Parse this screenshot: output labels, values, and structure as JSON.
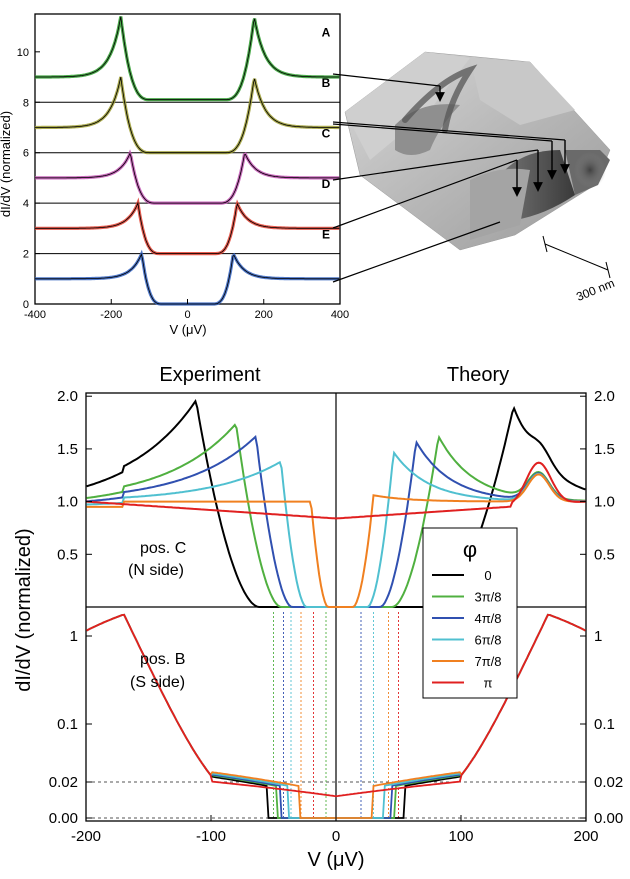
{
  "chart_data": [
    {
      "type": "line",
      "xlabel": "V (μV)",
      "ylabel": "dI/dV (normalized)",
      "xlim": [
        -400,
        400
      ],
      "ylim": [
        0,
        11.5
      ],
      "xticks": [
        "-400",
        "-200",
        "0",
        "200",
        "400"
      ],
      "yticks": [
        "0",
        "2",
        "4",
        "6",
        "8",
        "10"
      ],
      "series": [
        {
          "name": "A",
          "color": "#2a9a2a",
          "baseline": 9,
          "peak": 11.4,
          "gap": 175,
          "floor": 8.1
        },
        {
          "name": "B",
          "color": "#9a9a30",
          "baseline": 7,
          "peak": 9.0,
          "gap": 175,
          "floor": 6.0
        },
        {
          "name": "C",
          "color": "#c050b0",
          "baseline": 5,
          "peak": 6.0,
          "gap": 150,
          "floor": 4.0
        },
        {
          "name": "D",
          "color": "#e04030",
          "baseline": 3,
          "peak": 4.0,
          "gap": 130,
          "floor": 2.0
        },
        {
          "name": "E",
          "color": "#3060c0",
          "baseline": 1,
          "peak": 2.0,
          "gap": 120,
          "floor": 0.0
        }
      ],
      "reference_lines": [
        8,
        6,
        4,
        2
      ],
      "scale_bar": "300 nm"
    },
    {
      "type": "line",
      "panel_titles": {
        "left": "Experiment",
        "right": "Theory"
      },
      "xlabel": "V (μV)",
      "ylabel": "dI/dV (normalized)",
      "xlim": [
        -200,
        200
      ],
      "xticks": [
        "-200",
        "-100",
        "0",
        "100",
        "200"
      ],
      "top_panel": {
        "label_line1": "pos. C",
        "label_line2": "(N side)",
        "ylim": [
          0,
          2.0
        ],
        "yticks": [
          "0.5",
          "1.0",
          "1.5",
          "2.0"
        ],
        "peaks": {
          "experiment": [
            [
              -112,
              1.96
            ],
            [
              -80,
              1.74
            ],
            [
              -64,
              1.62
            ],
            [
              -44,
              1.38
            ],
            [
              -20,
              1.0
            ],
            [
              0,
              0.84
            ]
          ],
          "theory": [
            [
              142,
              1.9
            ],
            [
              82,
              1.62
            ],
            [
              64,
              1.57
            ],
            [
              46,
              1.47
            ],
            [
              30,
              1.06
            ],
            [
              0,
              0.84
            ]
          ]
        }
      },
      "bottom_panel": {
        "label_line1": "pos. B",
        "label_line2": "(S side)",
        "yticks": [
          "0.00",
          "0.02",
          "0.1",
          "1"
        ],
        "reference_level": 0.02
      },
      "legend": {
        "title": "φ",
        "entries": [
          {
            "label": "0",
            "color": "#000000"
          },
          {
            "label": "3π/8",
            "color": "#50b040"
          },
          {
            "label": "4π/8",
            "color": "#3050b0"
          },
          {
            "label": "6π/8",
            "color": "#50c0d0"
          },
          {
            "label": "7π/8",
            "color": "#f08020"
          },
          {
            "label": "π",
            "color": "#e02020"
          }
        ]
      }
    }
  ]
}
